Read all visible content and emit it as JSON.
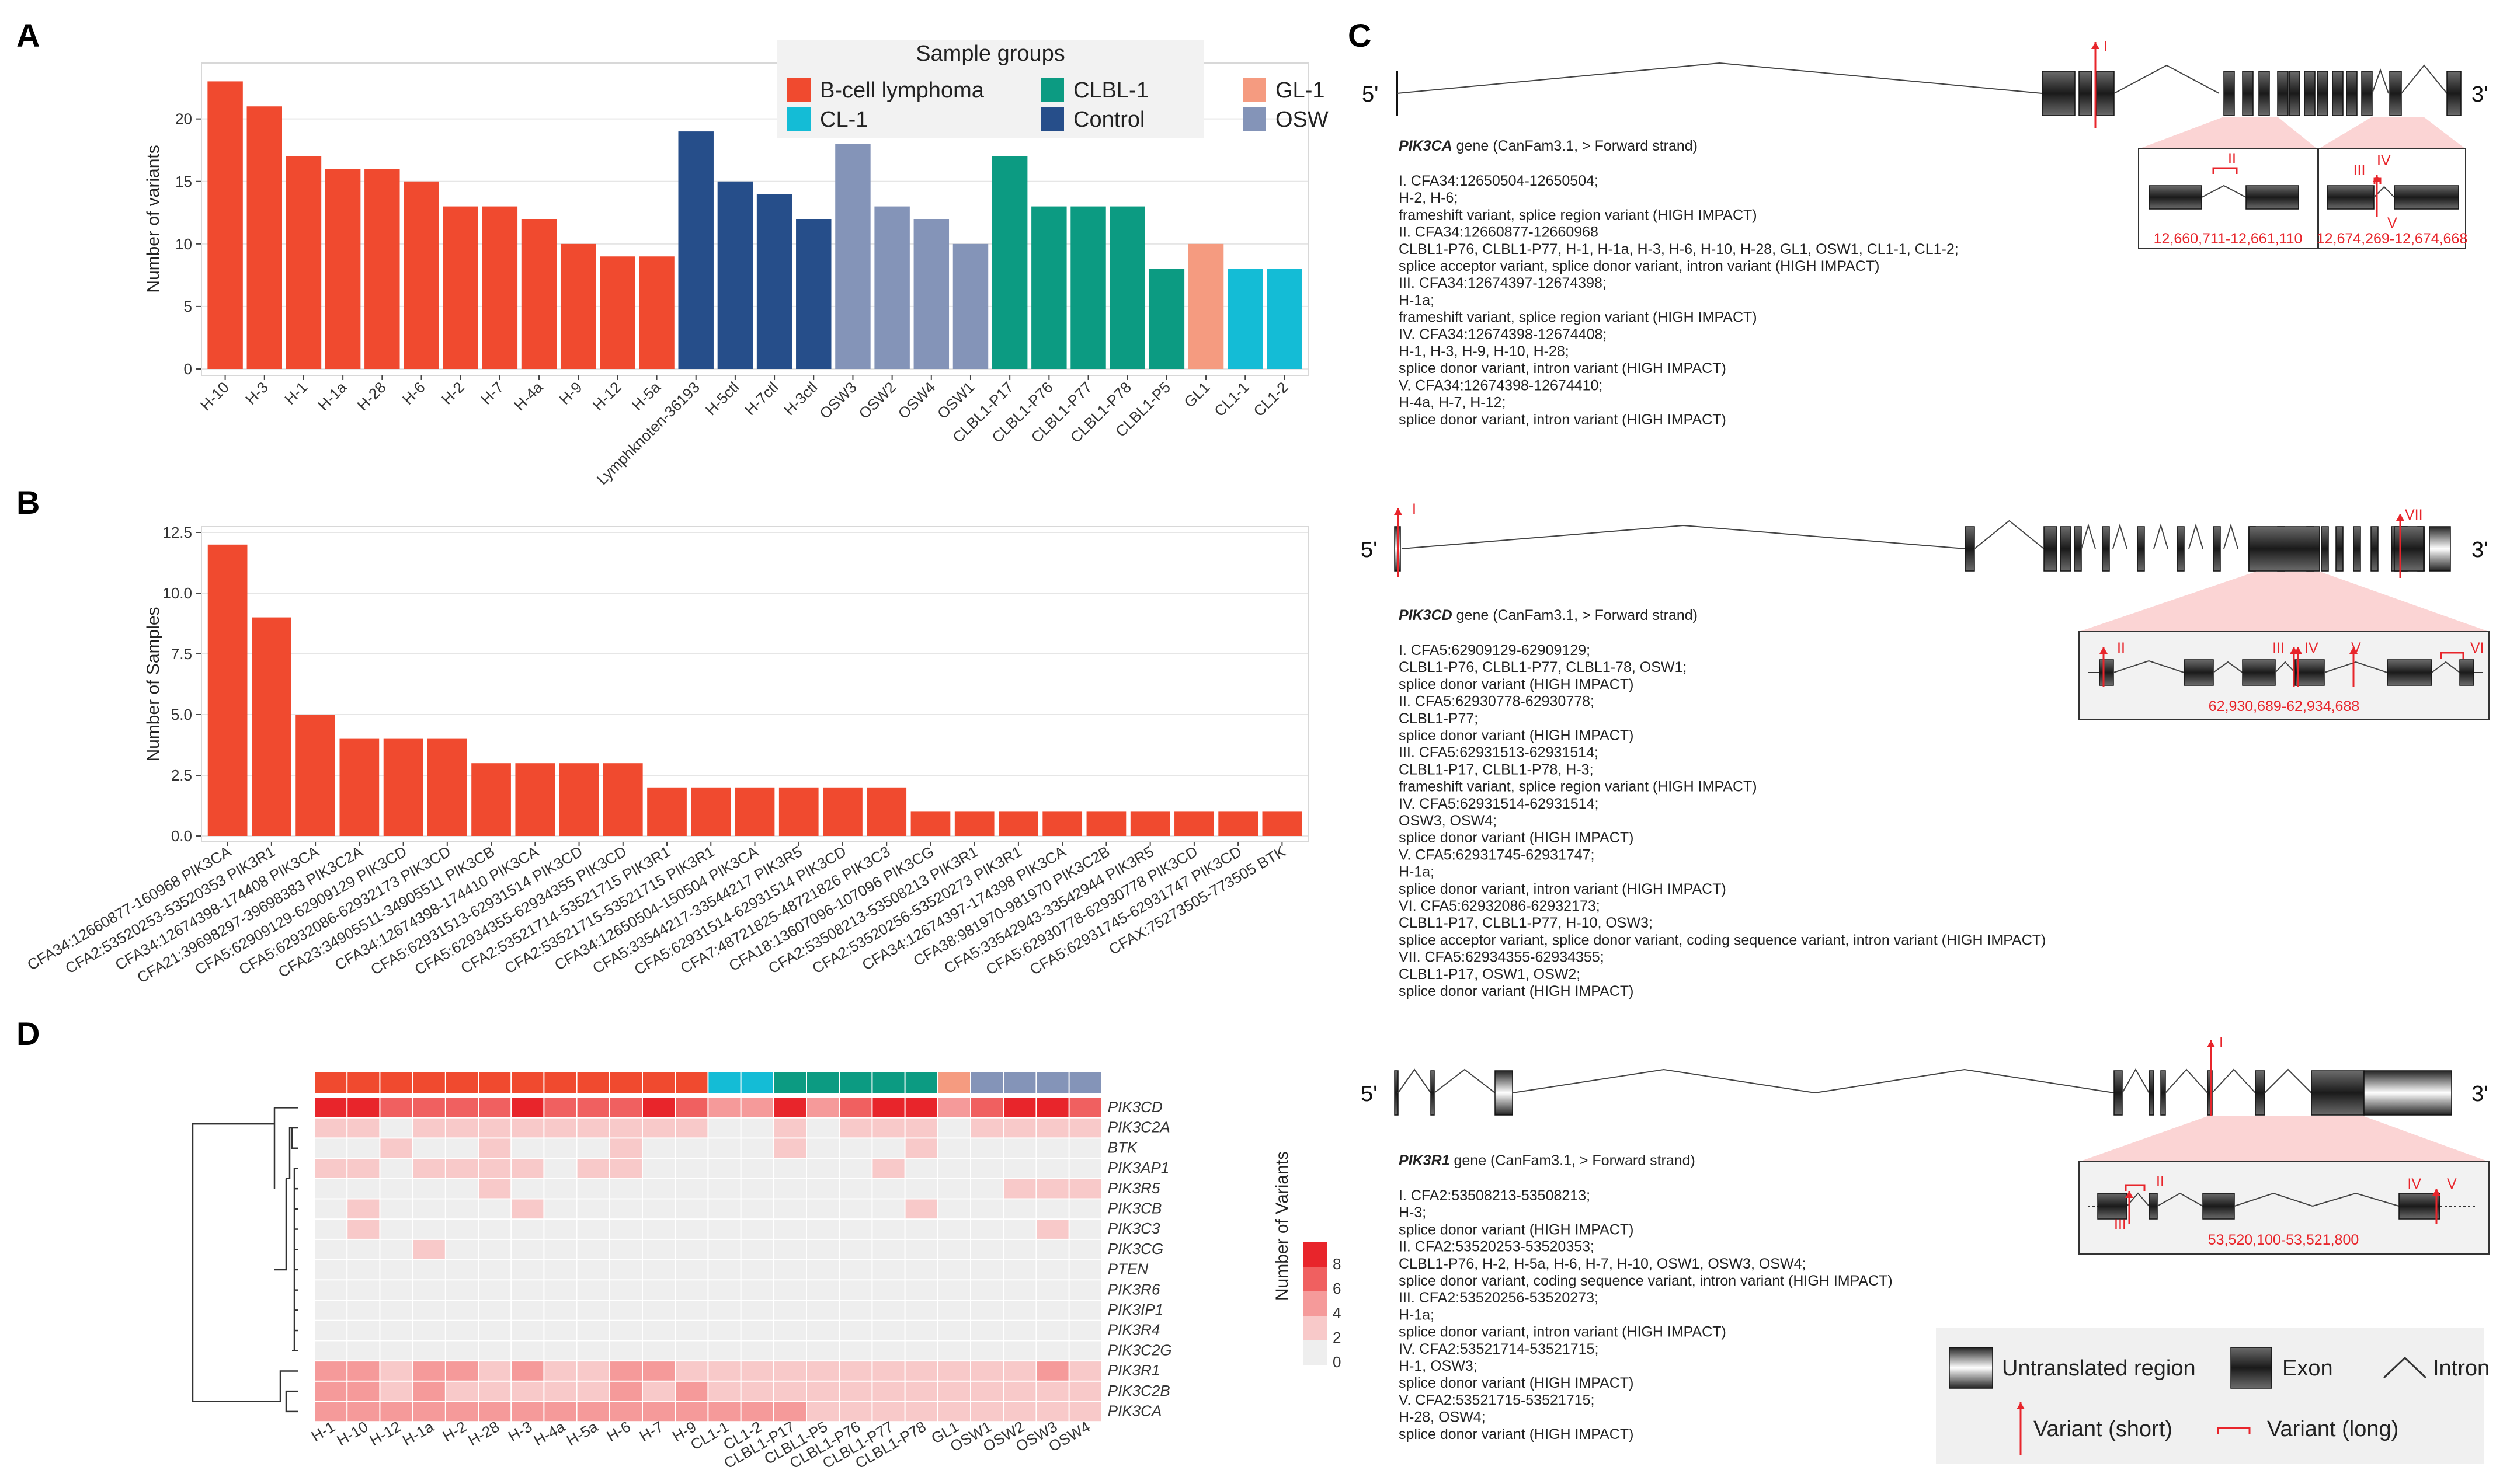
{
  "panel_labels": [
    "A",
    "B",
    "C",
    "D"
  ],
  "colors": {
    "B-cell lymphoma": "#f04a2f",
    "CL-1": "#14bcd6",
    "CLBL-1": "#0c9b82",
    "Control": "#264e8a",
    "GL-1": "#f59b80",
    "OSW": "#8494b8",
    "variant_red": "#e8252b",
    "bar_B": "#f04a2f"
  },
  "chart_data": [
    {
      "id": "A",
      "type": "bar",
      "ylabel": "Number of variants",
      "ylim": [
        0,
        24
      ],
      "yticks": [
        0,
        5,
        10,
        15,
        20
      ],
      "grid": true,
      "legend": {
        "title": "Sample groups",
        "position": "top-right",
        "entries": [
          "B-cell lymphoma",
          "CLBL-1",
          "GL-1",
          "CL-1",
          "Control",
          "OSW"
        ]
      },
      "categories": [
        "H-10",
        "H-3",
        "H-1",
        "H-1a",
        "H-28",
        "H-6",
        "H-2",
        "H-7",
        "H-4a",
        "H-9",
        "H-12",
        "H-5a",
        "Lymphknoten-36193",
        "H-5ctl",
        "H-7ctl",
        "H-3ctl",
        "OSW3",
        "OSW2",
        "OSW4",
        "OSW1",
        "CLBL1-P17",
        "CLBL1-P76",
        "CLBL1-P77",
        "CLBL1-P78",
        "CLBL1-P5",
        "GL1",
        "CL1-1",
        "CL1-2"
      ],
      "values": [
        23,
        21,
        17,
        16,
        16,
        15,
        13,
        13,
        12,
        10,
        9,
        9,
        19,
        15,
        14,
        12,
        18,
        13,
        12,
        10,
        17,
        13,
        13,
        13,
        8,
        10,
        8,
        8
      ],
      "groups": [
        "B-cell lymphoma",
        "B-cell lymphoma",
        "B-cell lymphoma",
        "B-cell lymphoma",
        "B-cell lymphoma",
        "B-cell lymphoma",
        "B-cell lymphoma",
        "B-cell lymphoma",
        "B-cell lymphoma",
        "B-cell lymphoma",
        "B-cell lymphoma",
        "B-cell lymphoma",
        "Control",
        "Control",
        "Control",
        "Control",
        "OSW",
        "OSW",
        "OSW",
        "OSW",
        "CLBL-1",
        "CLBL-1",
        "CLBL-1",
        "CLBL-1",
        "CLBL-1",
        "GL-1",
        "CL-1",
        "CL-1"
      ]
    },
    {
      "id": "B",
      "type": "bar",
      "ylabel": "Number of Samples",
      "ylim": [
        0,
        12.5
      ],
      "yticks": [
        "0.0",
        "2.5",
        "5.0",
        "7.5",
        "10.0",
        "12.5"
      ],
      "grid": true,
      "categories": [
        "CFA34:12660877-160968 PIK3CA",
        "CFA2:53520253-53520353 PIK3R1",
        "CFA34:12674398-174408 PIK3CA",
        "CFA21:39698297-39698383 PIK3C2A",
        "CFA5:62909129-62909129 PIK3CD",
        "CFA5:62932086-62932173 PIK3CD",
        "CFA23:34905511-34905511 PIK3CB",
        "CFA34:12674398-174410 PIK3CA",
        "CFA5:62931513-62931514 PIK3CD",
        "CFA5:62934355-62934355 PIK3CD",
        "CFA2:53521714-53521715 PIK3R1",
        "CFA2:53521715-53521715 PIK3R1",
        "CFA34:12650504-150504 PIK3CA",
        "CFA5:33544217-33544217 PIK3R5",
        "CFA5:62931514-62931514 PIK3CD",
        "CFA7:48721825-48721826 PIK3C3",
        "CFA18:13607096-107096 PIK3CG",
        "CFA2:53508213-53508213 PIK3R1",
        "CFA2:53520256-53520273 PIK3R1",
        "CFA34:12674397-174398 PIK3CA",
        "CFA38:981970-981970 PIK3C2B",
        "CFA5:33542943-33542944 PIK3R5",
        "CFA5:62930778-62930778 PIK3CD",
        "CFA5:62931745-62931747 PIK3CD",
        "CFAX:75273505-773505 BTK"
      ],
      "values": [
        12,
        9,
        5,
        4,
        4,
        4,
        3,
        3,
        3,
        3,
        2,
        2,
        2,
        2,
        2,
        2,
        1,
        1,
        1,
        1,
        1,
        1,
        1,
        1,
        1
      ]
    },
    {
      "id": "D",
      "type": "heatmap",
      "legend_title": "Number of Variants",
      "legend_ticks": [
        0,
        2,
        4,
        6,
        8
      ],
      "columns": [
        "H-1",
        "H-10",
        "H-12",
        "H-1a",
        "H-2",
        "H-28",
        "H-3",
        "H-4a",
        "H-5a",
        "H-6",
        "H-7",
        "H-9",
        "CL1-1",
        "CL1-2",
        "CLBL1-P17",
        "CLBL1-P5",
        "CLBL1-P76",
        "CLBL1-P77",
        "CLBL1-P78",
        "GL1",
        "OSW1",
        "OSW2",
        "OSW3",
        "OSW4"
      ],
      "column_groups": [
        "B-cell lymphoma",
        "B-cell lymphoma",
        "B-cell lymphoma",
        "B-cell lymphoma",
        "B-cell lymphoma",
        "B-cell lymphoma",
        "B-cell lymphoma",
        "B-cell lymphoma",
        "B-cell lymphoma",
        "B-cell lymphoma",
        "B-cell lymphoma",
        "B-cell lymphoma",
        "CL-1",
        "CL-1",
        "CLBL-1",
        "CLBL-1",
        "CLBL-1",
        "CLBL-1",
        "CLBL-1",
        "GL-1",
        "OSW",
        "OSW",
        "OSW",
        "OSW"
      ],
      "rows": [
        "PIK3CD",
        "PIK3C2A",
        "BTK",
        "PIK3AP1",
        "PIK3R5",
        "PIK3CB",
        "PIK3C3",
        "PIK3CG",
        "PTEN",
        "PIK3R6",
        "PIK3IP1",
        "PIK3R4",
        "PIK3C2G",
        "PIK3R1",
        "PIK3C2B",
        "PIK3CA"
      ],
      "values": [
        [
          8,
          8,
          6,
          6,
          6,
          6,
          8,
          6,
          6,
          6,
          8,
          6,
          4,
          4,
          8,
          4,
          6,
          8,
          8,
          4,
          6,
          8,
          8,
          6
        ],
        [
          2,
          2,
          0,
          2,
          2,
          2,
          2,
          2,
          2,
          2,
          2,
          2,
          0,
          0,
          2,
          0,
          2,
          2,
          2,
          0,
          2,
          2,
          2,
          2
        ],
        [
          0,
          0,
          2,
          0,
          0,
          2,
          0,
          0,
          0,
          2,
          0,
          0,
          0,
          0,
          2,
          0,
          0,
          0,
          2,
          0,
          0,
          0,
          0,
          0
        ],
        [
          2,
          2,
          0,
          2,
          2,
          2,
          2,
          0,
          2,
          2,
          0,
          0,
          0,
          0,
          0,
          0,
          0,
          2,
          0,
          0,
          0,
          0,
          0,
          0
        ],
        [
          0,
          0,
          0,
          0,
          0,
          2,
          0,
          0,
          0,
          0,
          0,
          0,
          0,
          0,
          0,
          0,
          0,
          0,
          0,
          0,
          0,
          2,
          2,
          2
        ],
        [
          0,
          2,
          0,
          0,
          0,
          0,
          2,
          0,
          0,
          0,
          0,
          0,
          0,
          0,
          0,
          0,
          0,
          0,
          2,
          0,
          0,
          0,
          0,
          0
        ],
        [
          0,
          2,
          0,
          0,
          0,
          0,
          0,
          0,
          0,
          0,
          0,
          0,
          0,
          0,
          0,
          0,
          0,
          0,
          0,
          0,
          0,
          0,
          2,
          0
        ],
        [
          0,
          0,
          0,
          2,
          0,
          0,
          0,
          0,
          0,
          0,
          0,
          0,
          0,
          0,
          0,
          0,
          0,
          0,
          0,
          0,
          0,
          0,
          0,
          0
        ],
        [
          0,
          0,
          0,
          0,
          0,
          0,
          0,
          0,
          0,
          0,
          0,
          0,
          0,
          0,
          0,
          0,
          0,
          0,
          0,
          0,
          0,
          0,
          0,
          0
        ],
        [
          0,
          0,
          0,
          0,
          0,
          0,
          0,
          0,
          0,
          0,
          0,
          0,
          0,
          0,
          0,
          0,
          0,
          0,
          0,
          0,
          0,
          0,
          0,
          0
        ],
        [
          0,
          0,
          0,
          0,
          0,
          0,
          0,
          0,
          0,
          0,
          0,
          0,
          0,
          0,
          0,
          0,
          0,
          0,
          0,
          0,
          0,
          0,
          0,
          0
        ],
        [
          0,
          0,
          0,
          0,
          0,
          0,
          0,
          0,
          0,
          0,
          0,
          0,
          0,
          0,
          0,
          0,
          0,
          0,
          0,
          0,
          0,
          0,
          0,
          0
        ],
        [
          0,
          0,
          0,
          0,
          0,
          0,
          0,
          0,
          0,
          0,
          0,
          0,
          0,
          0,
          0,
          0,
          0,
          0,
          0,
          0,
          0,
          0,
          0,
          0
        ],
        [
          4,
          4,
          2,
          4,
          4,
          2,
          4,
          2,
          2,
          4,
          4,
          2,
          2,
          2,
          2,
          2,
          2,
          2,
          2,
          2,
          2,
          2,
          4,
          2
        ],
        [
          4,
          4,
          2,
          4,
          2,
          2,
          2,
          2,
          2,
          4,
          2,
          4,
          2,
          2,
          2,
          2,
          2,
          2,
          2,
          2,
          2,
          2,
          2,
          2
        ],
        [
          4,
          4,
          4,
          4,
          4,
          4,
          4,
          4,
          4,
          4,
          4,
          4,
          4,
          4,
          4,
          2,
          2,
          2,
          2,
          2,
          2,
          2,
          2,
          2
        ]
      ]
    }
  ],
  "panel_C": {
    "five_prime": "5'",
    "three_prime": "3'",
    "genes": [
      {
        "name": "PIK3CA",
        "title_suffix": " gene (CanFam3.1, > Forward strand)",
        "zoom_ranges": [
          "12,660,711-12,661,110",
          "12,674,269-12,674,668"
        ],
        "zoom_marks_1": [
          "II"
        ],
        "zoom_marks_2": [
          "III",
          "IV",
          "V"
        ],
        "marks_main": [
          "I"
        ],
        "notes": [
          "I.   CFA34:12650504-12650504;",
          "      H-2, H-6;",
          "      frameshift variant, splice region variant (HIGH IMPACT)",
          "II.  CFA34:12660877-12660968",
          "      CLBL1-P76, CLBL1-P77, H-1, H-1a, H-3, H-6, H-10, H-28, GL1, OSW1, CL1-1, CL1-2;",
          "      splice acceptor variant, splice donor variant, intron variant (HIGH IMPACT)",
          "III. CFA34:12674397-12674398;",
          "      H-1a;",
          "      frameshift variant, splice region variant (HIGH IMPACT)",
          "IV.  CFA34:12674398-12674408;",
          "      H-1, H-3, H-9, H-10, H-28;",
          "      splice donor variant, intron variant (HIGH IMPACT)",
          "V.   CFA34:12674398-12674410;",
          "      H-4a, H-7, H-12;",
          "      splice donor variant, intron variant (HIGH IMPACT)"
        ]
      },
      {
        "name": "PIK3CD",
        "title_suffix": " gene (CanFam3.1, > Forward strand)",
        "zoom_ranges": [
          "62,930,689-62,934,688"
        ],
        "zoom_marks": [
          "II",
          "III",
          "IV",
          "V",
          "VI"
        ],
        "marks_main": [
          "I",
          "VII"
        ],
        "notes": [
          "I.    CFA5:62909129-62909129;",
          "       CLBL1-P76, CLBL1-P77, CLBL1-78, OSW1;",
          "       splice donor variant (HIGH IMPACT)",
          "II.   CFA5:62930778-62930778;",
          "       CLBL1-P77;",
          "       splice donor variant (HIGH IMPACT)",
          "III.  CFA5:62931513-62931514;",
          "       CLBL1-P17, CLBL1-P78, H-3;",
          "       frameshift variant, splice region variant (HIGH IMPACT)",
          "IV.   CFA5:62931514-62931514;",
          "       OSW3, OSW4;",
          "       splice donor variant (HIGH IMPACT)",
          "V.    CFA5:62931745-62931747;",
          "       H-1a;",
          "       splice donor variant, intron variant (HIGH IMPACT)",
          "VI.   CFA5:62932086-62932173;",
          "       CLBL1-P17, CLBL1-P77, H-10, OSW3;",
          "       splice acceptor variant, splice donor variant, coding sequence variant, intron variant (HIGH IMPACT)",
          "VII.  CFA5:62934355-62934355;",
          "       CLBL1-P17, OSW1, OSW2;",
          "       splice donor variant (HIGH IMPACT)"
        ]
      },
      {
        "name": "PIK3R1",
        "title_suffix": " gene (CanFam3.1, > Forward strand)",
        "zoom_ranges": [
          "53,520,100-53,521,800"
        ],
        "zoom_marks": [
          "II",
          "III",
          "IV",
          "V"
        ],
        "marks_main": [
          "I"
        ],
        "notes": [
          "I.    CFA2:53508213-53508213;",
          "       H-3;",
          "       splice donor variant (HIGH IMPACT)",
          "II.   CFA2:53520253-53520353;",
          "       CLBL1-P76, H-2, H-5a, H-6, H-7, H-10, OSW1, OSW3, OSW4;",
          "       splice donor variant, coding sequence variant, intron variant (HIGH IMPACT)",
          "III.  CFA2:53520256-53520273;",
          "       H-1a;",
          "       splice donor variant, intron variant (HIGH IMPACT)",
          "IV.   CFA2:53521714-53521715;",
          "       H-1, OSW3;",
          "       splice donor variant (HIGH IMPACT)",
          "V.    CFA2:53521715-53521715;",
          "       H-28, OSW4;",
          "       splice donor variant (HIGH IMPACT)"
        ]
      }
    ],
    "legend": {
      "utr": "Untranslated region",
      "exon": "Exon",
      "intron": "Intron",
      "short": "Variant (short)",
      "long": "Variant (long)"
    }
  }
}
